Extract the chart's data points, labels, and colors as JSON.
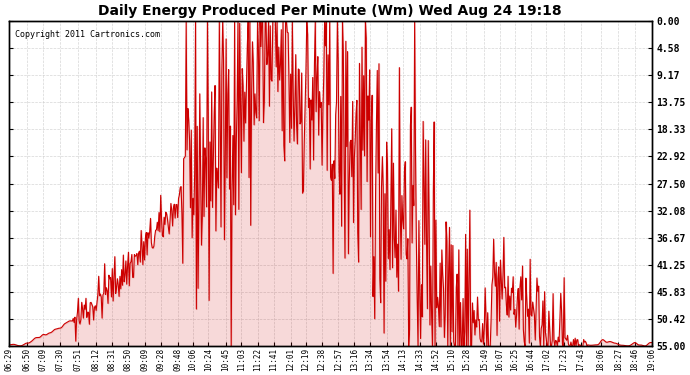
{
  "title": "Daily Energy Produced Per Minute (Wm) Wed Aug 24 19:18",
  "copyright": "Copyright 2011 Cartronics.com",
  "line_color": "#cc0000",
  "bg_color": "#ffffff",
  "plot_bg_color": "#ffffff",
  "grid_color": "#cccccc",
  "ylabel_right": [
    "55.00",
    "50.42",
    "45.83",
    "41.25",
    "36.67",
    "32.08",
    "27.50",
    "22.92",
    "18.33",
    "13.75",
    "9.17",
    "4.58",
    "0.00"
  ],
  "ymax": 55.0,
  "ymin": 0.0,
  "yticks": [
    0.0,
    4.58,
    9.17,
    13.75,
    18.33,
    22.92,
    27.5,
    32.08,
    36.67,
    41.25,
    45.83,
    50.42,
    55.0
  ],
  "xtick_labels": [
    "06:29",
    "06:50",
    "07:09",
    "07:30",
    "07:51",
    "08:12",
    "08:31",
    "08:50",
    "09:09",
    "09:28",
    "09:48",
    "10:06",
    "10:24",
    "10:45",
    "11:03",
    "11:22",
    "11:41",
    "12:01",
    "12:19",
    "12:38",
    "12:57",
    "13:16",
    "13:34",
    "13:54",
    "14:13",
    "14:33",
    "14:52",
    "15:10",
    "15:28",
    "15:49",
    "16:07",
    "16:25",
    "16:44",
    "17:02",
    "17:23",
    "17:43",
    "18:06",
    "18:27",
    "18:46",
    "19:06"
  ]
}
